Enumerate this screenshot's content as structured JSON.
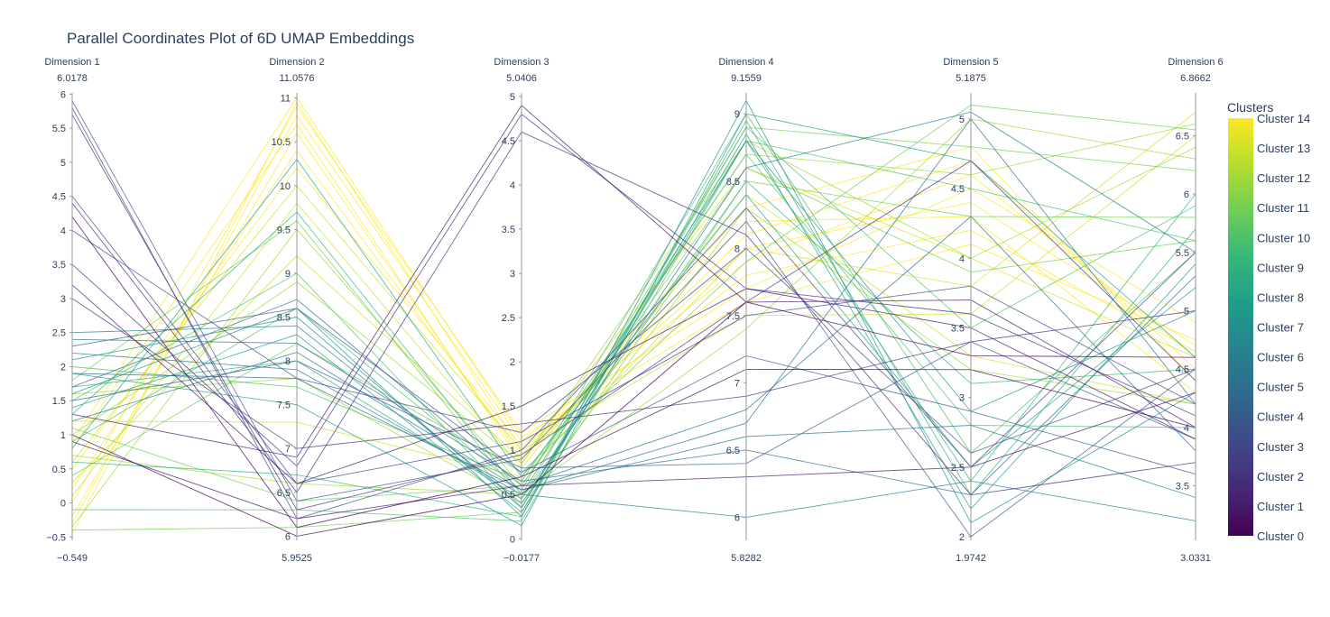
{
  "chart_data": {
    "type": "parallel_coordinates",
    "title": "Parallel Coordinates Plot of 6D UMAP Embeddings",
    "colorscale": [
      "#440154",
      "#482878",
      "#3e4989",
      "#31688e",
      "#26828e",
      "#1f9e89",
      "#35b779",
      "#6ece58",
      "#b5de2b",
      "#fde725"
    ],
    "dimensions": [
      {
        "label": "Dimension 1",
        "range": [
          -0.549,
          6.0178
        ],
        "range_labels": [
          "6.0178",
          "−0.549"
        ],
        "ticks": [
          -0.5,
          0,
          0.5,
          1,
          1.5,
          2,
          2.5,
          3,
          3.5,
          4,
          4.5,
          5,
          5.5,
          6
        ],
        "tick_labels": [
          "−0.5",
          "0",
          "0.5",
          "1",
          "1.5",
          "2",
          "2.5",
          "3",
          "3.5",
          "4",
          "4.5",
          "5",
          "5.5",
          "6"
        ]
      },
      {
        "label": "Dimension 2",
        "range": [
          5.9525,
          11.0576
        ],
        "range_labels": [
          "11.0576",
          "5.9525"
        ],
        "ticks": [
          6,
          6.5,
          7,
          7.5,
          8,
          8.5,
          9,
          9.5,
          10,
          10.5,
          11
        ],
        "tick_labels": [
          "6",
          "6.5",
          "7",
          "7.5",
          "8",
          "8.5",
          "9",
          "9.5",
          "10",
          "10.5",
          "11"
        ]
      },
      {
        "label": "Dimension 3",
        "range": [
          -0.0177,
          5.0406
        ],
        "range_labels": [
          "5.0406",
          "−0.0177"
        ],
        "ticks": [
          0,
          0.5,
          1,
          1.5,
          2,
          2.5,
          3,
          3.5,
          4,
          4.5,
          5
        ],
        "tick_labels": [
          "0",
          "0.5",
          "1",
          "1.5",
          "2",
          "2.5",
          "3",
          "3.5",
          "4",
          "4.5",
          "5"
        ]
      },
      {
        "label": "Dimension 4",
        "range": [
          5.8282,
          9.1559
        ],
        "range_labels": [
          "9.1559",
          "5.8282"
        ],
        "ticks": [
          6,
          6.5,
          7,
          7.5,
          8,
          8.5,
          9
        ],
        "tick_labels": [
          "6",
          "6.5",
          "7",
          "7.5",
          "8",
          "8.5",
          "9"
        ]
      },
      {
        "label": "Dimension 5",
        "range": [
          1.9742,
          5.1875
        ],
        "range_labels": [
          "5.1875",
          "1.9742"
        ],
        "ticks": [
          2,
          2.5,
          3,
          3.5,
          4,
          4.5,
          5
        ],
        "tick_labels": [
          "2",
          "2.5",
          "3",
          "3.5",
          "4",
          "4.5",
          "5"
        ]
      },
      {
        "label": "Dimension 6",
        "range": [
          3.0331,
          6.8662
        ],
        "range_labels": [
          "6.8662",
          "3.0331"
        ],
        "ticks": [
          3.5,
          4,
          4.5,
          5,
          5.5,
          6,
          6.5
        ],
        "tick_labels": [
          "3.5",
          "4",
          "4.5",
          "5",
          "5.5",
          "6",
          "6.5"
        ]
      }
    ],
    "legend": {
      "title": "Clusters",
      "labels": [
        "Cluster 14",
        "Cluster 13",
        "Cluster 12",
        "Cluster 11",
        "Cluster 10",
        "Cluster 9",
        "Cluster 8",
        "Cluster 7",
        "Cluster 6",
        "Cluster 5",
        "Cluster 4",
        "Cluster 3",
        "Cluster 2",
        "Cluster 1",
        "Cluster 0"
      ]
    },
    "samples": [
      {
        "cluster": 14,
        "values": [
          -0.45,
          10.95,
          1.0,
          8.0,
          4.4,
          4.7
        ]
      },
      {
        "cluster": 14,
        "values": [
          -0.3,
          10.8,
          1.1,
          7.9,
          4.6,
          4.6
        ]
      },
      {
        "cluster": 14,
        "values": [
          -0.2,
          10.6,
          0.9,
          8.2,
          4.3,
          4.3
        ]
      },
      {
        "cluster": 14,
        "values": [
          0.0,
          10.9,
          1.2,
          7.7,
          4.5,
          4.9
        ]
      },
      {
        "cluster": 14,
        "values": [
          0.2,
          10.4,
          0.95,
          8.1,
          4.7,
          4.5
        ]
      },
      {
        "cluster": 14,
        "values": [
          0.5,
          10.2,
          1.05,
          7.8,
          4.2,
          4.65
        ]
      },
      {
        "cluster": 14,
        "values": [
          0.8,
          10.7,
          0.85,
          8.3,
          4.8,
          4.4
        ]
      },
      {
        "cluster": 14,
        "values": [
          0.9,
          11.0,
          1.15,
          7.6,
          4.1,
          4.75
        ]
      },
      {
        "cluster": 13,
        "values": [
          0.1,
          9.8,
          0.8,
          8.4,
          3.3,
          4.2
        ]
      },
      {
        "cluster": 13,
        "values": [
          0.6,
          10.0,
          1.0,
          7.5,
          3.6,
          6.5
        ]
      },
      {
        "cluster": 13,
        "values": [
          0.3,
          9.2,
          0.9,
          8.6,
          4.0,
          4.6
        ]
      },
      {
        "cluster": 13,
        "values": [
          1.2,
          7.3,
          0.7,
          8.0,
          3.8,
          6.7
        ]
      },
      {
        "cluster": 12,
        "values": [
          -0.35,
          9.5,
          0.6,
          8.7,
          4.6,
          6.6
        ]
      },
      {
        "cluster": 12,
        "values": [
          1.0,
          8.9,
          0.85,
          8.8,
          4.0,
          6.4
        ]
      },
      {
        "cluster": 12,
        "values": [
          0.7,
          6.6,
          0.5,
          7.4,
          5.0,
          6.3
        ]
      },
      {
        "cluster": 12,
        "values": [
          1.6,
          7.8,
          0.4,
          8.3,
          3.2,
          4.2
        ]
      },
      {
        "cluster": 11,
        "values": [
          1.8,
          9.6,
          0.45,
          8.9,
          4.8,
          6.2
        ]
      },
      {
        "cluster": 11,
        "values": [
          -0.4,
          6.1,
          0.3,
          8.5,
          4.3,
          5.8
        ]
      },
      {
        "cluster": 11,
        "values": [
          1.1,
          6.4,
          0.6,
          8.6,
          3.9,
          5.6
        ]
      },
      {
        "cluster": 11,
        "values": [
          0.4,
          8.2,
          0.75,
          7.9,
          5.1,
          6.55
        ]
      },
      {
        "cluster": 10,
        "values": [
          1.5,
          9.0,
          0.35,
          8.9,
          3.5,
          5.9
        ]
      },
      {
        "cluster": 10,
        "values": [
          -0.1,
          6.3,
          0.2,
          8.8,
          4.5,
          5.6
        ]
      },
      {
        "cluster": 10,
        "values": [
          0.9,
          8.6,
          0.55,
          9.0,
          2.6,
          5.5
        ]
      },
      {
        "cluster": 10,
        "values": [
          2.0,
          7.7,
          0.65,
          8.7,
          2.8,
          4.0
        ]
      },
      {
        "cluster": 9,
        "values": [
          1.3,
          9.7,
          0.5,
          8.8,
          2.4,
          6.0
        ]
      },
      {
        "cluster": 9,
        "values": [
          0.6,
          6.7,
          0.25,
          8.95,
          2.3,
          5.7
        ]
      },
      {
        "cluster": 9,
        "values": [
          1.7,
          8.0,
          0.45,
          8.5,
          3.1,
          4.5
        ]
      },
      {
        "cluster": 8,
        "values": [
          1.4,
          8.3,
          0.3,
          8.85,
          2.2,
          5.4
        ]
      },
      {
        "cluster": 8,
        "values": [
          1.9,
          7.5,
          0.15,
          9.0,
          4.7,
          4.6
        ]
      },
      {
        "cluster": 8,
        "values": [
          0.8,
          10.3,
          0.7,
          8.4,
          2.5,
          5.2
        ]
      },
      {
        "cluster": 7,
        "values": [
          2.1,
          8.5,
          0.35,
          8.8,
          2.9,
          5.0
        ]
      },
      {
        "cluster": 7,
        "values": [
          1.6,
          8.6,
          0.25,
          9.1,
          2.1,
          4.3
        ]
      },
      {
        "cluster": 6,
        "values": [
          2.5,
          8.4,
          0.4,
          8.6,
          5.05,
          5.5
        ]
      },
      {
        "cluster": 6,
        "values": [
          1.2,
          8.1,
          0.55,
          6.6,
          2.8,
          3.4
        ]
      },
      {
        "cluster": 6,
        "values": [
          2.2,
          7.9,
          0.5,
          6.0,
          2.4,
          3.2
        ]
      },
      {
        "cluster": 5,
        "values": [
          1.7,
          8.7,
          0.6,
          6.8,
          4.3,
          3.8
        ]
      },
      {
        "cluster": 5,
        "values": [
          2.4,
          8.2,
          0.65,
          6.5,
          2.3,
          5.3
        ]
      },
      {
        "cluster": 5,
        "values": [
          1.9,
          7.8,
          0.55,
          6.7,
          5.0,
          4.2
        ]
      },
      {
        "cluster": 4,
        "values": [
          1.5,
          8.0,
          0.8,
          6.4,
          3.4,
          3.9
        ]
      },
      {
        "cluster": 4,
        "values": [
          2.3,
          8.6,
          0.75,
          7.2,
          2.9,
          3.6
        ]
      },
      {
        "cluster": 4,
        "values": [
          5.9,
          6.4,
          0.9,
          8.2,
          2.0,
          4.5
        ]
      },
      {
        "cluster": 3,
        "values": [
          5.8,
          6.2,
          1.0,
          8.3,
          2.5,
          5.5
        ]
      },
      {
        "cluster": 3,
        "values": [
          4.5,
          6.6,
          1.1,
          7.5,
          3.8,
          4.2
        ]
      },
      {
        "cluster": 3,
        "values": [
          4.0,
          7.8,
          1.2,
          8.0,
          2.6,
          4.5
        ]
      },
      {
        "cluster": 2,
        "values": [
          5.7,
          6.3,
          0.95,
          7.6,
          4.7,
          4.4
        ]
      },
      {
        "cluster": 2,
        "values": [
          3.5,
          6.8,
          4.8,
          7.7,
          3.6,
          4.1
        ]
      },
      {
        "cluster": 2,
        "values": [
          4.4,
          6.5,
          4.6,
          8.1,
          2.3,
          3.7
        ]
      },
      {
        "cluster": 2,
        "values": [
          3.0,
          7.0,
          1.3,
          6.9,
          3.4,
          5.0
        ]
      },
      {
        "cluster": 1,
        "values": [
          1.3,
          6.9,
          4.9,
          7.6,
          3.7,
          4.0
        ]
      },
      {
        "cluster": 1,
        "values": [
          0.9,
          6.2,
          0.6,
          6.3,
          2.5,
          4.3
        ]
      },
      {
        "cluster": 1,
        "values": [
          3.2,
          6.6,
          1.5,
          7.7,
          3.5,
          3.9
        ]
      },
      {
        "cluster": 0,
        "values": [
          1.0,
          6.0,
          0.5,
          7.6,
          3.3,
          4.6
        ]
      },
      {
        "cluster": 0,
        "values": [
          4.2,
          6.1,
          0.7,
          7.1,
          3.2,
          4.0
        ]
      }
    ]
  }
}
